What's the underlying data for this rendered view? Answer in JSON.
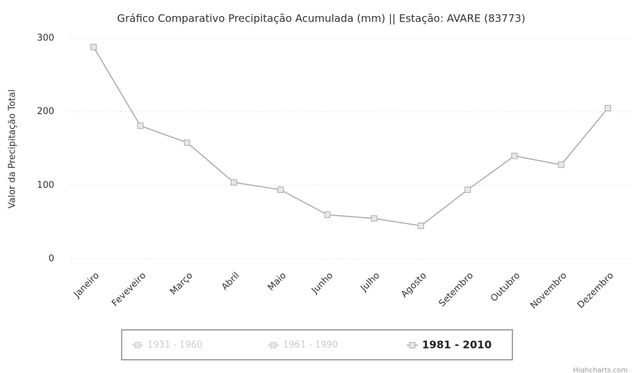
{
  "chart_data": {
    "type": "line",
    "title": "Gráfico Comparativo Precipitação Acumulada (mm) || Estação: AVARE (83773)",
    "y_label": "Valor da Precipitação Total",
    "categories": [
      "Janeiro",
      "Feveveiro",
      "Março",
      "Abril",
      "Maio",
      "Junho",
      "Julho",
      "Agosto",
      "Setembro",
      "Outubro",
      "Novembro",
      "Dezembro"
    ],
    "series": [
      {
        "name": "1931 - 1960",
        "color": "#cccccc",
        "visible": false
      },
      {
        "name": "1961 - 1990",
        "color": "#cccccc",
        "visible": false
      },
      {
        "name": "1981 - 2010",
        "color": "#a8a8a8",
        "visible": true,
        "values": [
          288,
          181,
          158,
          104,
          94,
          60,
          55,
          45,
          94,
          140,
          128,
          205
        ]
      }
    ],
    "ylim": [
      0,
      300
    ],
    "yticks": [
      0,
      100,
      200,
      300
    ],
    "grid": true,
    "credits": "Highcharts.com"
  }
}
